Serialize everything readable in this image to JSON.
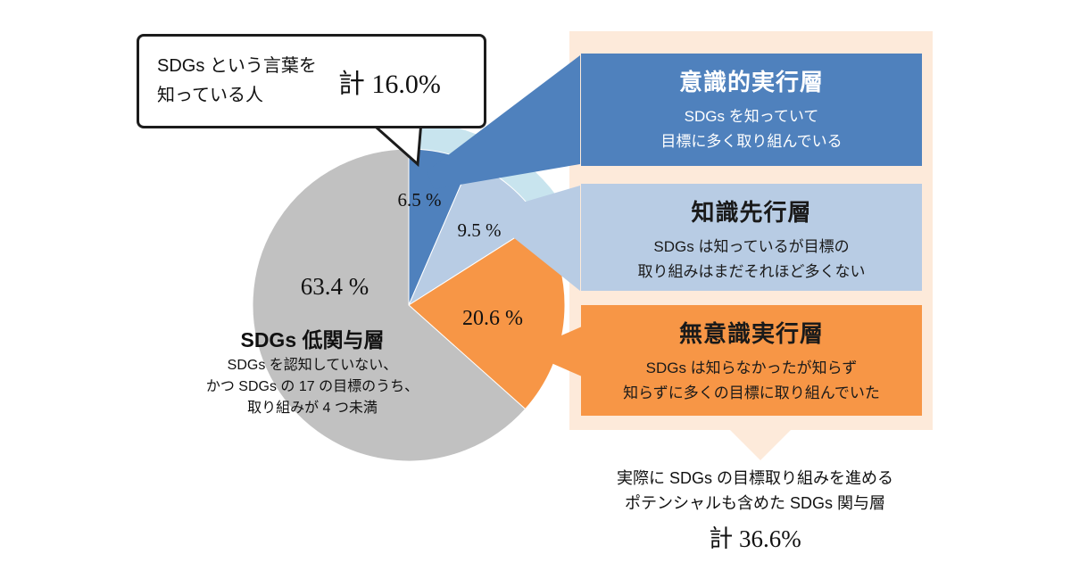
{
  "chart_data": {
    "type": "pie",
    "unit": "%",
    "start_angle_deg": 0,
    "direction": "clockwise",
    "segments": [
      {
        "label": "意識的実行層",
        "value": 6.5,
        "display": "6.5 %",
        "color": "#4f81bd",
        "title_color": "#ffffff",
        "text_color": "#ffffff",
        "desc_lines": [
          "SDGs を知っていて",
          "目標に多く取り組んでいる"
        ]
      },
      {
        "label": "知識先行層",
        "value": 9.5,
        "display": "9.5 %",
        "color": "#b8cce4",
        "title_color": "#1a1a1a",
        "text_color": "#1a1a1a",
        "desc_lines": [
          "SDGs は知っているが目標の",
          "取り組みはまだそれほど多くない"
        ]
      },
      {
        "label": "無意識実行層",
        "value": 20.6,
        "display": "20.6 %",
        "color": "#f79646",
        "title_color": "#1a1a1a",
        "text_color": "#1a1a1a",
        "desc_lines": [
          "SDGs は知らなかったが知らず",
          "知らずに多くの目標に取り組んでいた"
        ]
      },
      {
        "label": "SDGs 低関与層",
        "value": 63.4,
        "display": "63.4 %",
        "color": "#c1c1c1",
        "title_color": "#1a1a1a",
        "text_color": "#1a1a1a",
        "desc_lines": [
          "SDGs を認知していない、",
          "かつ SDGs の 17 の目標のうち、",
          "取り組みが 4 つ未満"
        ]
      }
    ],
    "annotations": {
      "aware_callout": {
        "lines": [
          "SDGs という言葉を",
          "知っている人"
        ],
        "total_label": "計 16.0%",
        "value": 16.0,
        "highlight_color": "#c8e4ee"
      },
      "engaged_footer": {
        "lines": [
          "実際に SDGs の目標取り組みを進める",
          "ポテンシャルも含めた SDGs 関与層"
        ],
        "total_label": "計 36.6%",
        "value": 36.6
      }
    },
    "panel_bg": "#fdeada"
  }
}
